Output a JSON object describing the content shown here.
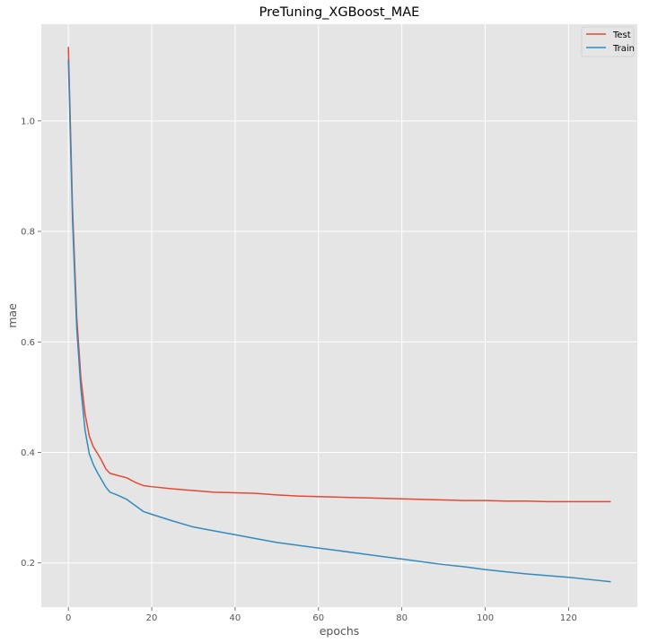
{
  "chart_data": {
    "type": "line",
    "title": "PreTuning_XGBoost_MAE",
    "xlabel": "epochs",
    "ylabel": "mae",
    "xlim": [
      -6.5,
      136.5
    ],
    "ylim": [
      0.12,
      1.175
    ],
    "xticks": [
      0,
      20,
      40,
      60,
      80,
      100,
      120
    ],
    "yticks": [
      0.2,
      0.4,
      0.6,
      0.8,
      1.0
    ],
    "ytick_labels": [
      "0.2",
      "0.4",
      "0.6",
      "0.8",
      "1.0"
    ],
    "grid": true,
    "legend_position": "top-right",
    "series": [
      {
        "name": "Test",
        "color": "#e24a33",
        "x": [
          0,
          1,
          2,
          3,
          4,
          5,
          6,
          7,
          8,
          9,
          10,
          12,
          14,
          16,
          18,
          20,
          25,
          30,
          35,
          40,
          45,
          50,
          55,
          60,
          65,
          70,
          75,
          80,
          85,
          90,
          95,
          100,
          105,
          110,
          115,
          120,
          125,
          130
        ],
        "y": [
          1.133,
          0.84,
          0.645,
          0.535,
          0.47,
          0.43,
          0.41,
          0.398,
          0.385,
          0.37,
          0.362,
          0.358,
          0.354,
          0.346,
          0.34,
          0.338,
          0.334,
          0.331,
          0.328,
          0.327,
          0.326,
          0.323,
          0.321,
          0.32,
          0.319,
          0.318,
          0.317,
          0.316,
          0.315,
          0.314,
          0.313,
          0.313,
          0.312,
          0.312,
          0.311,
          0.311,
          0.311,
          0.311
        ]
      },
      {
        "name": "Train",
        "color": "#348abd",
        "x": [
          0,
          1,
          2,
          3,
          4,
          5,
          6,
          7,
          8,
          9,
          10,
          12,
          14,
          16,
          18,
          20,
          25,
          30,
          35,
          40,
          45,
          50,
          55,
          60,
          65,
          70,
          75,
          80,
          85,
          90,
          95,
          100,
          105,
          110,
          115,
          120,
          125,
          130
        ],
        "y": [
          1.11,
          0.82,
          0.625,
          0.515,
          0.44,
          0.398,
          0.378,
          0.363,
          0.35,
          0.337,
          0.328,
          0.322,
          0.315,
          0.304,
          0.293,
          0.288,
          0.276,
          0.265,
          0.258,
          0.251,
          0.244,
          0.237,
          0.232,
          0.227,
          0.222,
          0.217,
          0.212,
          0.207,
          0.202,
          0.197,
          0.193,
          0.188,
          0.184,
          0.18,
          0.177,
          0.174,
          0.17,
          0.166
        ]
      }
    ]
  }
}
